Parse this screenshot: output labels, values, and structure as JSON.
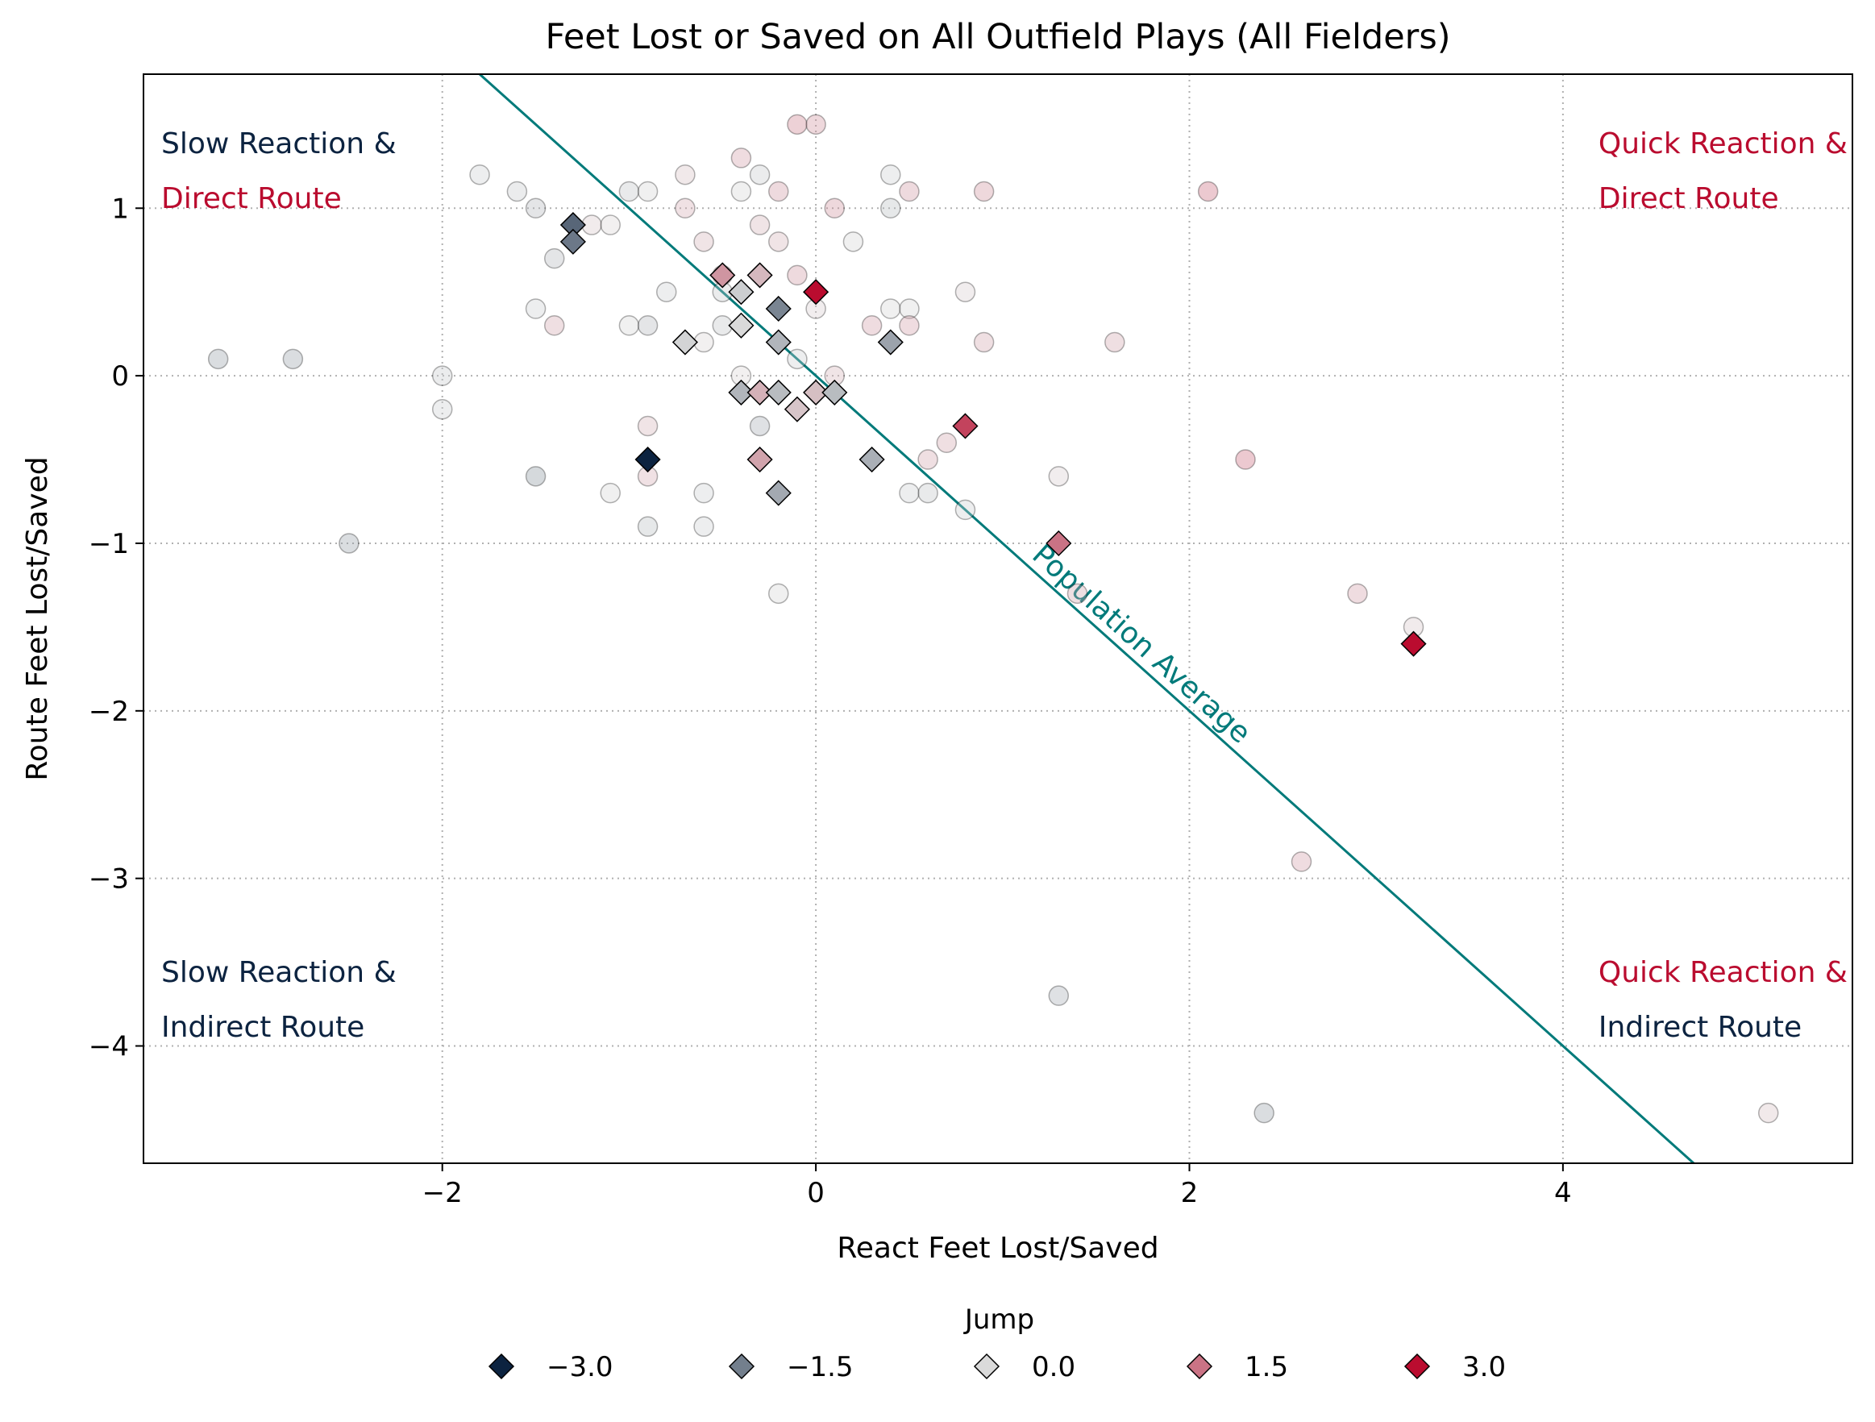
{
  "chart_data": {
    "type": "scatter",
    "title": "Feet Lost or Saved on All Outfield Plays (All Fielders)",
    "xlabel": "React Feet Lost/Saved",
    "ylabel": "Route Feet Lost/Saved",
    "xlim": [
      -3.6,
      5.55
    ],
    "ylim": [
      -4.7,
      1.8
    ],
    "xticks": [
      -2,
      0,
      2,
      4
    ],
    "yticks": [
      -4,
      -3,
      -2,
      -1,
      0,
      1
    ],
    "xtick_labels": [
      "−2",
      "0",
      "2",
      "4"
    ],
    "ytick_labels": [
      "−4",
      "−3",
      "−2",
      "−1",
      "0",
      "1"
    ],
    "grid": true,
    "reference_line": {
      "label": "Population Average",
      "slope": -1,
      "intercept": 0,
      "color": "#007A7A"
    },
    "quadrant_labels": [
      {
        "position": "top-left",
        "line1": "Slow Reaction &",
        "line2": "Direct Route",
        "color1": "#0C2340",
        "color2": "#BA0C2F"
      },
      {
        "position": "top-right",
        "line1": "Quick Reaction &",
        "line2": "Direct Route",
        "color1": "#BA0C2F",
        "color2": "#BA0C2F"
      },
      {
        "position": "bottom-left",
        "line1": "Slow Reaction &",
        "line2": "Indirect Route",
        "color1": "#0C2340",
        "color2": "#0C2340"
      },
      {
        "position": "bottom-right",
        "line1": "Quick Reaction &",
        "line2": "Indirect Route",
        "color1": "#BA0C2F",
        "color2": "#0C2340"
      }
    ],
    "colormap": {
      "low": "#0C2340",
      "mid": "#DADADA",
      "high": "#BA0C2F",
      "vmin": -3,
      "vmax": 3
    },
    "legend": {
      "title": "Jump",
      "placement": "bottom-center",
      "entries": [
        {
          "label": "−3.0",
          "value": -3.0
        },
        {
          "label": "−1.5",
          "value": -1.5
        },
        {
          "label": "0.0",
          "value": 0.0
        },
        {
          "label": "1.5",
          "value": 1.5
        },
        {
          "label": "3.0",
          "value": 3.0
        }
      ]
    },
    "series": [
      {
        "marker": "circle",
        "alpha": 0.35,
        "points": [
          [
            -3.2,
            0.1,
            -1.0
          ],
          [
            -2.8,
            0.1,
            -1.0
          ],
          [
            -2.5,
            -1.0,
            -1.0
          ],
          [
            -2.0,
            0.0,
            -0.3
          ],
          [
            -2.0,
            -0.2,
            -0.2
          ],
          [
            -1.8,
            1.2,
            -0.2
          ],
          [
            -1.6,
            1.1,
            -0.3
          ],
          [
            -1.5,
            1.0,
            -0.6
          ],
          [
            -1.5,
            0.4,
            -0.2
          ],
          [
            -1.5,
            -0.6,
            -1.2
          ],
          [
            -1.4,
            0.7,
            -0.6
          ],
          [
            -1.4,
            0.3,
            0.8
          ],
          [
            -1.2,
            0.9,
            0.3
          ],
          [
            -1.1,
            0.9,
            0.1
          ],
          [
            -1.1,
            -0.7,
            -0.1
          ],
          [
            -1.0,
            1.1,
            -0.4
          ],
          [
            -1.0,
            0.3,
            -0.1
          ],
          [
            -0.9,
            1.1,
            -0.1
          ],
          [
            -0.9,
            0.3,
            -0.6
          ],
          [
            -0.9,
            -0.3,
            0.6
          ],
          [
            -0.9,
            -0.6,
            0.7
          ],
          [
            -0.9,
            -0.9,
            -0.5
          ],
          [
            -0.8,
            0.5,
            -0.2
          ],
          [
            -0.7,
            1.2,
            0.4
          ],
          [
            -0.7,
            1.0,
            0.7
          ],
          [
            -0.6,
            0.8,
            0.6
          ],
          [
            -0.6,
            0.2,
            0.1
          ],
          [
            -0.6,
            -0.7,
            -0.2
          ],
          [
            -0.6,
            -0.9,
            -0.2
          ],
          [
            -0.5,
            0.6,
            1.2
          ],
          [
            -0.5,
            0.5,
            -0.3
          ],
          [
            -0.5,
            0.3,
            -0.4
          ],
          [
            -0.4,
            1.3,
            0.9
          ],
          [
            -0.4,
            1.1,
            -0.1
          ],
          [
            -0.4,
            0.0,
            0.1
          ],
          [
            -0.3,
            1.2,
            -0.3
          ],
          [
            -0.3,
            0.9,
            0.6
          ],
          [
            -0.3,
            -0.3,
            -0.8
          ],
          [
            -0.2,
            1.1,
            1.0
          ],
          [
            -0.2,
            0.8,
            0.6
          ],
          [
            -0.2,
            -1.3,
            -0.1
          ],
          [
            -0.1,
            1.5,
            1.4
          ],
          [
            -0.1,
            0.6,
            1.0
          ],
          [
            -0.1,
            0.1,
            -0.2
          ],
          [
            0.0,
            1.5,
            1.1
          ],
          [
            0.0,
            0.4,
            0.2
          ],
          [
            0.1,
            1.0,
            1.1
          ],
          [
            0.1,
            0.0,
            0.6
          ],
          [
            0.2,
            0.8,
            -0.1
          ],
          [
            0.3,
            0.3,
            0.9
          ],
          [
            0.4,
            1.2,
            -0.2
          ],
          [
            0.4,
            1.0,
            -0.5
          ],
          [
            0.4,
            0.4,
            -0.1
          ],
          [
            0.5,
            1.1,
            1.0
          ],
          [
            0.5,
            0.4,
            -0.1
          ],
          [
            0.5,
            0.3,
            0.9
          ],
          [
            0.5,
            -0.7,
            -0.2
          ],
          [
            0.6,
            -0.5,
            0.8
          ],
          [
            0.6,
            -0.7,
            -0.4
          ],
          [
            0.7,
            -0.4,
            0.8
          ],
          [
            0.8,
            0.5,
            0.2
          ],
          [
            0.8,
            -0.8,
            -0.2
          ],
          [
            0.9,
            1.1,
            1.1
          ],
          [
            0.9,
            0.2,
            0.8
          ],
          [
            1.3,
            -0.6,
            0.2
          ],
          [
            1.3,
            -3.7,
            -0.8
          ],
          [
            1.4,
            -1.3,
            0.8
          ],
          [
            1.6,
            0.2,
            0.8
          ],
          [
            2.1,
            1.1,
            1.7
          ],
          [
            2.3,
            -0.5,
            1.7
          ],
          [
            2.4,
            -4.4,
            -1.0
          ],
          [
            2.6,
            -2.9,
            0.9
          ],
          [
            2.9,
            -1.3,
            0.9
          ],
          [
            3.2,
            -1.5,
            0.3
          ],
          [
            5.1,
            -4.4,
            0.4
          ]
        ]
      },
      {
        "marker": "diamond",
        "alpha": 1.0,
        "points": [
          [
            -1.3,
            0.9,
            -1.9
          ],
          [
            -1.3,
            0.8,
            -1.6
          ],
          [
            -0.9,
            -0.5,
            -3.0
          ],
          [
            -0.7,
            0.2,
            -0.1
          ],
          [
            -0.5,
            0.6,
            1.0
          ],
          [
            -0.4,
            0.5,
            -0.2
          ],
          [
            -0.4,
            0.3,
            0.0
          ],
          [
            -0.4,
            -0.1,
            -0.6
          ],
          [
            -0.3,
            0.6,
            0.5
          ],
          [
            -0.3,
            -0.1,
            0.6
          ],
          [
            -0.3,
            -0.5,
            0.8
          ],
          [
            -0.2,
            0.4,
            -1.4
          ],
          [
            -0.2,
            0.2,
            -0.6
          ],
          [
            -0.2,
            -0.1,
            -0.5
          ],
          [
            -0.2,
            -0.7,
            -0.8
          ],
          [
            -0.1,
            -0.2,
            0.3
          ],
          [
            0.0,
            -0.1,
            0.4
          ],
          [
            0.0,
            0.5,
            3.0
          ],
          [
            0.1,
            -0.1,
            -0.5
          ],
          [
            0.3,
            -0.5,
            -0.7
          ],
          [
            0.4,
            0.2,
            -0.9
          ],
          [
            0.8,
            -0.3,
            2.2
          ],
          [
            1.3,
            -1.0,
            1.5
          ],
          [
            3.2,
            -1.6,
            3.0
          ]
        ]
      }
    ]
  }
}
